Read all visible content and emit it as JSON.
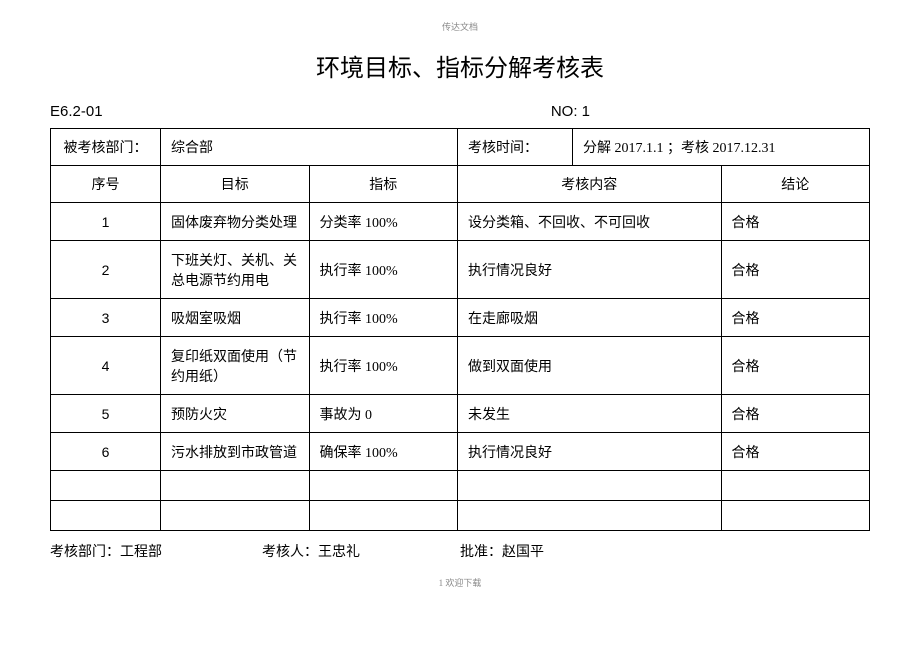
{
  "pageHeader": "传达文档",
  "title": "环境目标、指标分解考核表",
  "formCode": "E6.2-01",
  "formNo": "NO: 1",
  "info": {
    "deptLabel": "被考核部门：",
    "deptValue": "综合部",
    "timeLabel": "考核时间：",
    "timeValue": "分解 2017.1.1 ；考核 2017.12.31"
  },
  "headers": {
    "seq": "序号",
    "goal": "目标",
    "indicator": "指标",
    "content": "考核内容",
    "result": "结论"
  },
  "rows": [
    {
      "seq": "1",
      "goal": "固体废弃物分类处理",
      "indicator": "分类率 100%",
      "content": "设分类箱、不回收、不可回收",
      "result": "合格",
      "tall": false
    },
    {
      "seq": "2",
      "goal": "下班关灯、关机、关总电源节约用电",
      "indicator": "执行率 100%",
      "content": "执行情况良好",
      "result": "合格",
      "tall": true
    },
    {
      "seq": "3",
      "goal": "吸烟室吸烟",
      "indicator": "执行率 100%",
      "content": "在走廊吸烟",
      "result": "合格",
      "tall": false
    },
    {
      "seq": "4",
      "goal": "复印纸双面使用（节约用纸）",
      "indicator": "执行率 100%",
      "content": "做到双面使用",
      "result": "合格",
      "tall": true
    },
    {
      "seq": "5",
      "goal": "预防火灾",
      "indicator": "事故为 0",
      "content": "未发生",
      "result": "合格",
      "tall": false
    },
    {
      "seq": "6",
      "goal": "污水排放到市政管道",
      "indicator": "确保率 100%",
      "content": "执行情况良好",
      "result": "合格",
      "tall": false
    }
  ],
  "footer": {
    "dept": "考核部门：工程部",
    "person": "考核人：王忠礼",
    "approve": "批准：赵国平"
  },
  "pageFooter": "1 欢迎下载"
}
